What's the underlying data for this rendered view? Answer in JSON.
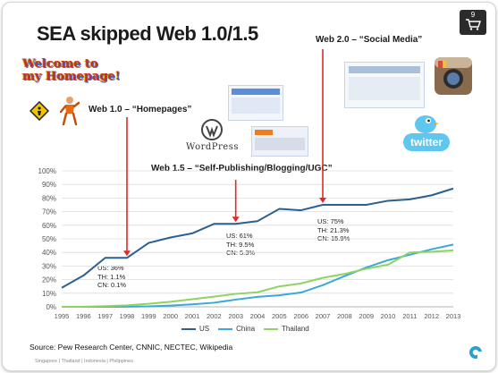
{
  "slide": {
    "title": "SEA skipped Web 1.0/1.5",
    "page_number": "9",
    "welcome_banner": "Welcome to my Homepage!",
    "eras": [
      {
        "label": "Web 1.0 – “Homepages”",
        "stats": [
          "US: 36%",
          "TH: 1.1%",
          "CN: 0.1%"
        ]
      },
      {
        "label": "Web 1.5 – “Self-Publishing/Blogging/UGC”",
        "stats": [
          "US: 61%",
          "TH: 9.5%",
          "CN: 5.3%"
        ]
      },
      {
        "label": "Web 2.0 – “Social Media”",
        "stats": [
          "US: 75%",
          "TH: 21.3%",
          "CN: 15.9%"
        ]
      }
    ],
    "wordpress_logo": "WordPress",
    "twitter_logo": "twitter",
    "source": "Source: Pew Research Center, CNNIC, NECTEC, Wikipedia",
    "footer": "Singapore | Thailand | Indonesia | Philippines",
    "colors": {
      "us": "#2b5f8e",
      "china": "#39a9dc",
      "thailand": "#8ed462",
      "arrow": "#e02a27"
    }
  },
  "chart_data": {
    "type": "line",
    "x": [
      1995,
      1996,
      1997,
      1998,
      1999,
      2000,
      2001,
      2002,
      2003,
      2004,
      2005,
      2006,
      2007,
      2008,
      2009,
      2010,
      2011,
      2012,
      2013
    ],
    "ylim": [
      0,
      100
    ],
    "yticks": [
      "0%",
      "10%",
      "20%",
      "30%",
      "40%",
      "50%",
      "60%",
      "70%",
      "80%",
      "90%",
      "100%"
    ],
    "grid": true,
    "legend_position": "bottom",
    "series": [
      {
        "name": "US",
        "values": [
          14,
          23,
          36,
          36,
          47,
          51,
          54,
          61,
          61,
          63,
          72,
          71,
          75,
          75,
          75,
          78,
          79,
          82,
          87
        ]
      },
      {
        "name": "China",
        "values": [
          0,
          0,
          0,
          0.1,
          0.3,
          0.9,
          1.8,
          3.0,
          5.3,
          7.3,
          8.5,
          10.5,
          15.9,
          22.6,
          28.9,
          34.3,
          38.3,
          42.3,
          45.8
        ]
      },
      {
        "name": "Thailand",
        "values": [
          0,
          0.1,
          0.5,
          1.1,
          2.2,
          3.7,
          5.6,
          7.5,
          9.5,
          10.7,
          15.0,
          17.2,
          21.3,
          24.2,
          28.0,
          31.0,
          40.0,
          40.5,
          41.5
        ]
      }
    ],
    "annotations": [
      {
        "x": 1998,
        "value": 36
      },
      {
        "x": 2003,
        "value": 61
      },
      {
        "x": 2007,
        "value": 75
      }
    ]
  }
}
